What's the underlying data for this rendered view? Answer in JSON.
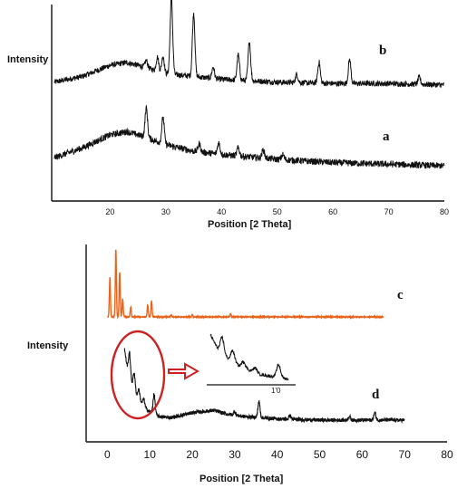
{
  "chart_data": [
    {
      "type": "line",
      "title": "",
      "xlabel": "Position [2 Theta]",
      "ylabel": "Intensity",
      "xlim": [
        10,
        80
      ],
      "ticks": [
        20,
        30,
        40,
        50,
        60,
        70,
        80
      ],
      "grid": false,
      "series": [
        {
          "name": "b",
          "color": "#111111",
          "baseline": [
            [
              10,
              6
            ],
            [
              15,
              10
            ],
            [
              20,
              18
            ],
            [
              23,
              20
            ],
            [
              26,
              17
            ],
            [
              30,
              12
            ],
            [
              35,
              10
            ],
            [
              40,
              8
            ],
            [
              50,
              6
            ],
            [
              60,
              5
            ],
            [
              70,
              5
            ],
            [
              80,
              4
            ]
          ],
          "peaks": [
            [
              26.5,
              5
            ],
            [
              28.5,
              10
            ],
            [
              29.5,
              12
            ],
            [
              31,
              55
            ],
            [
              35,
              45
            ],
            [
              38.5,
              8
            ],
            [
              43,
              18
            ],
            [
              45,
              28
            ],
            [
              53.5,
              6
            ],
            [
              57.5,
              15
            ],
            [
              63,
              17
            ],
            [
              75.5,
              5
            ]
          ]
        },
        {
          "name": "a",
          "color": "#111111",
          "baseline": [
            [
              10,
              6
            ],
            [
              15,
              12
            ],
            [
              20,
              20
            ],
            [
              23,
              22
            ],
            [
              26,
              19
            ],
            [
              30,
              14
            ],
            [
              35,
              10
            ],
            [
              40,
              8
            ],
            [
              50,
              5
            ],
            [
              60,
              3
            ],
            [
              70,
              2
            ],
            [
              80,
              1
            ]
          ],
          "peaks": [
            [
              26.5,
              18
            ],
            [
              29.5,
              16
            ],
            [
              36,
              5
            ],
            [
              39.5,
              7
            ],
            [
              43,
              5
            ],
            [
              47.5,
              5
            ],
            [
              51,
              3
            ]
          ]
        }
      ]
    },
    {
      "type": "line",
      "title": "",
      "xlabel": "Position [2 Theta]",
      "ylabel": "Intensity",
      "xlim": [
        -5,
        80
      ],
      "ticks": [
        0,
        10,
        20,
        30,
        40,
        50,
        60,
        70,
        80
      ],
      "grid": false,
      "series": [
        {
          "name": "c",
          "color": "#e8641c",
          "baseline": [
            [
              0,
              0
            ],
            [
              65,
              0
            ]
          ],
          "peaks": [
            [
              0.6,
              40
            ],
            [
              2.0,
              68
            ],
            [
              2.9,
              45
            ],
            [
              3.6,
              18
            ],
            [
              5.5,
              10
            ],
            [
              9.5,
              12
            ],
            [
              10.4,
              16
            ],
            [
              15,
              2
            ],
            [
              20,
              2
            ],
            [
              29,
              3
            ]
          ]
        },
        {
          "name": "d",
          "color": "#111111",
          "baseline": [
            [
              4,
              62
            ],
            [
              5,
              38
            ],
            [
              7,
              22
            ],
            [
              9,
              12
            ],
            [
              12,
              6
            ],
            [
              15,
              5
            ],
            [
              20,
              9
            ],
            [
              25,
              11
            ],
            [
              28,
              8
            ],
            [
              32,
              6
            ],
            [
              40,
              4
            ],
            [
              50,
              3
            ],
            [
              60,
              3
            ],
            [
              70,
              3
            ]
          ],
          "peaks": [
            [
              5.2,
              22
            ],
            [
              6.3,
              14
            ],
            [
              7.4,
              8
            ],
            [
              8.6,
              6
            ],
            [
              11,
              16
            ],
            [
              30,
              3
            ],
            [
              35.7,
              13
            ],
            [
              43,
              3
            ],
            [
              57,
              3
            ],
            [
              63,
              6
            ]
          ]
        }
      ],
      "annotations": [
        {
          "type": "ellipse",
          "color": "#cc2222",
          "x": 7.5,
          "note": "highlighted low-angle region of d"
        },
        {
          "type": "inset",
          "tick_label": "1'0"
        }
      ]
    }
  ],
  "labels": {
    "top_ylabel": "Intensity",
    "top_xlabel": "Position [2 Theta]",
    "bottom_ylabel": "Intensity",
    "bottom_xlabel": "Position [2 Theta]",
    "curve_b": "b",
    "curve_a": "a",
    "curve_c": "c",
    "curve_d": "d",
    "inset_tick": "1'0"
  }
}
